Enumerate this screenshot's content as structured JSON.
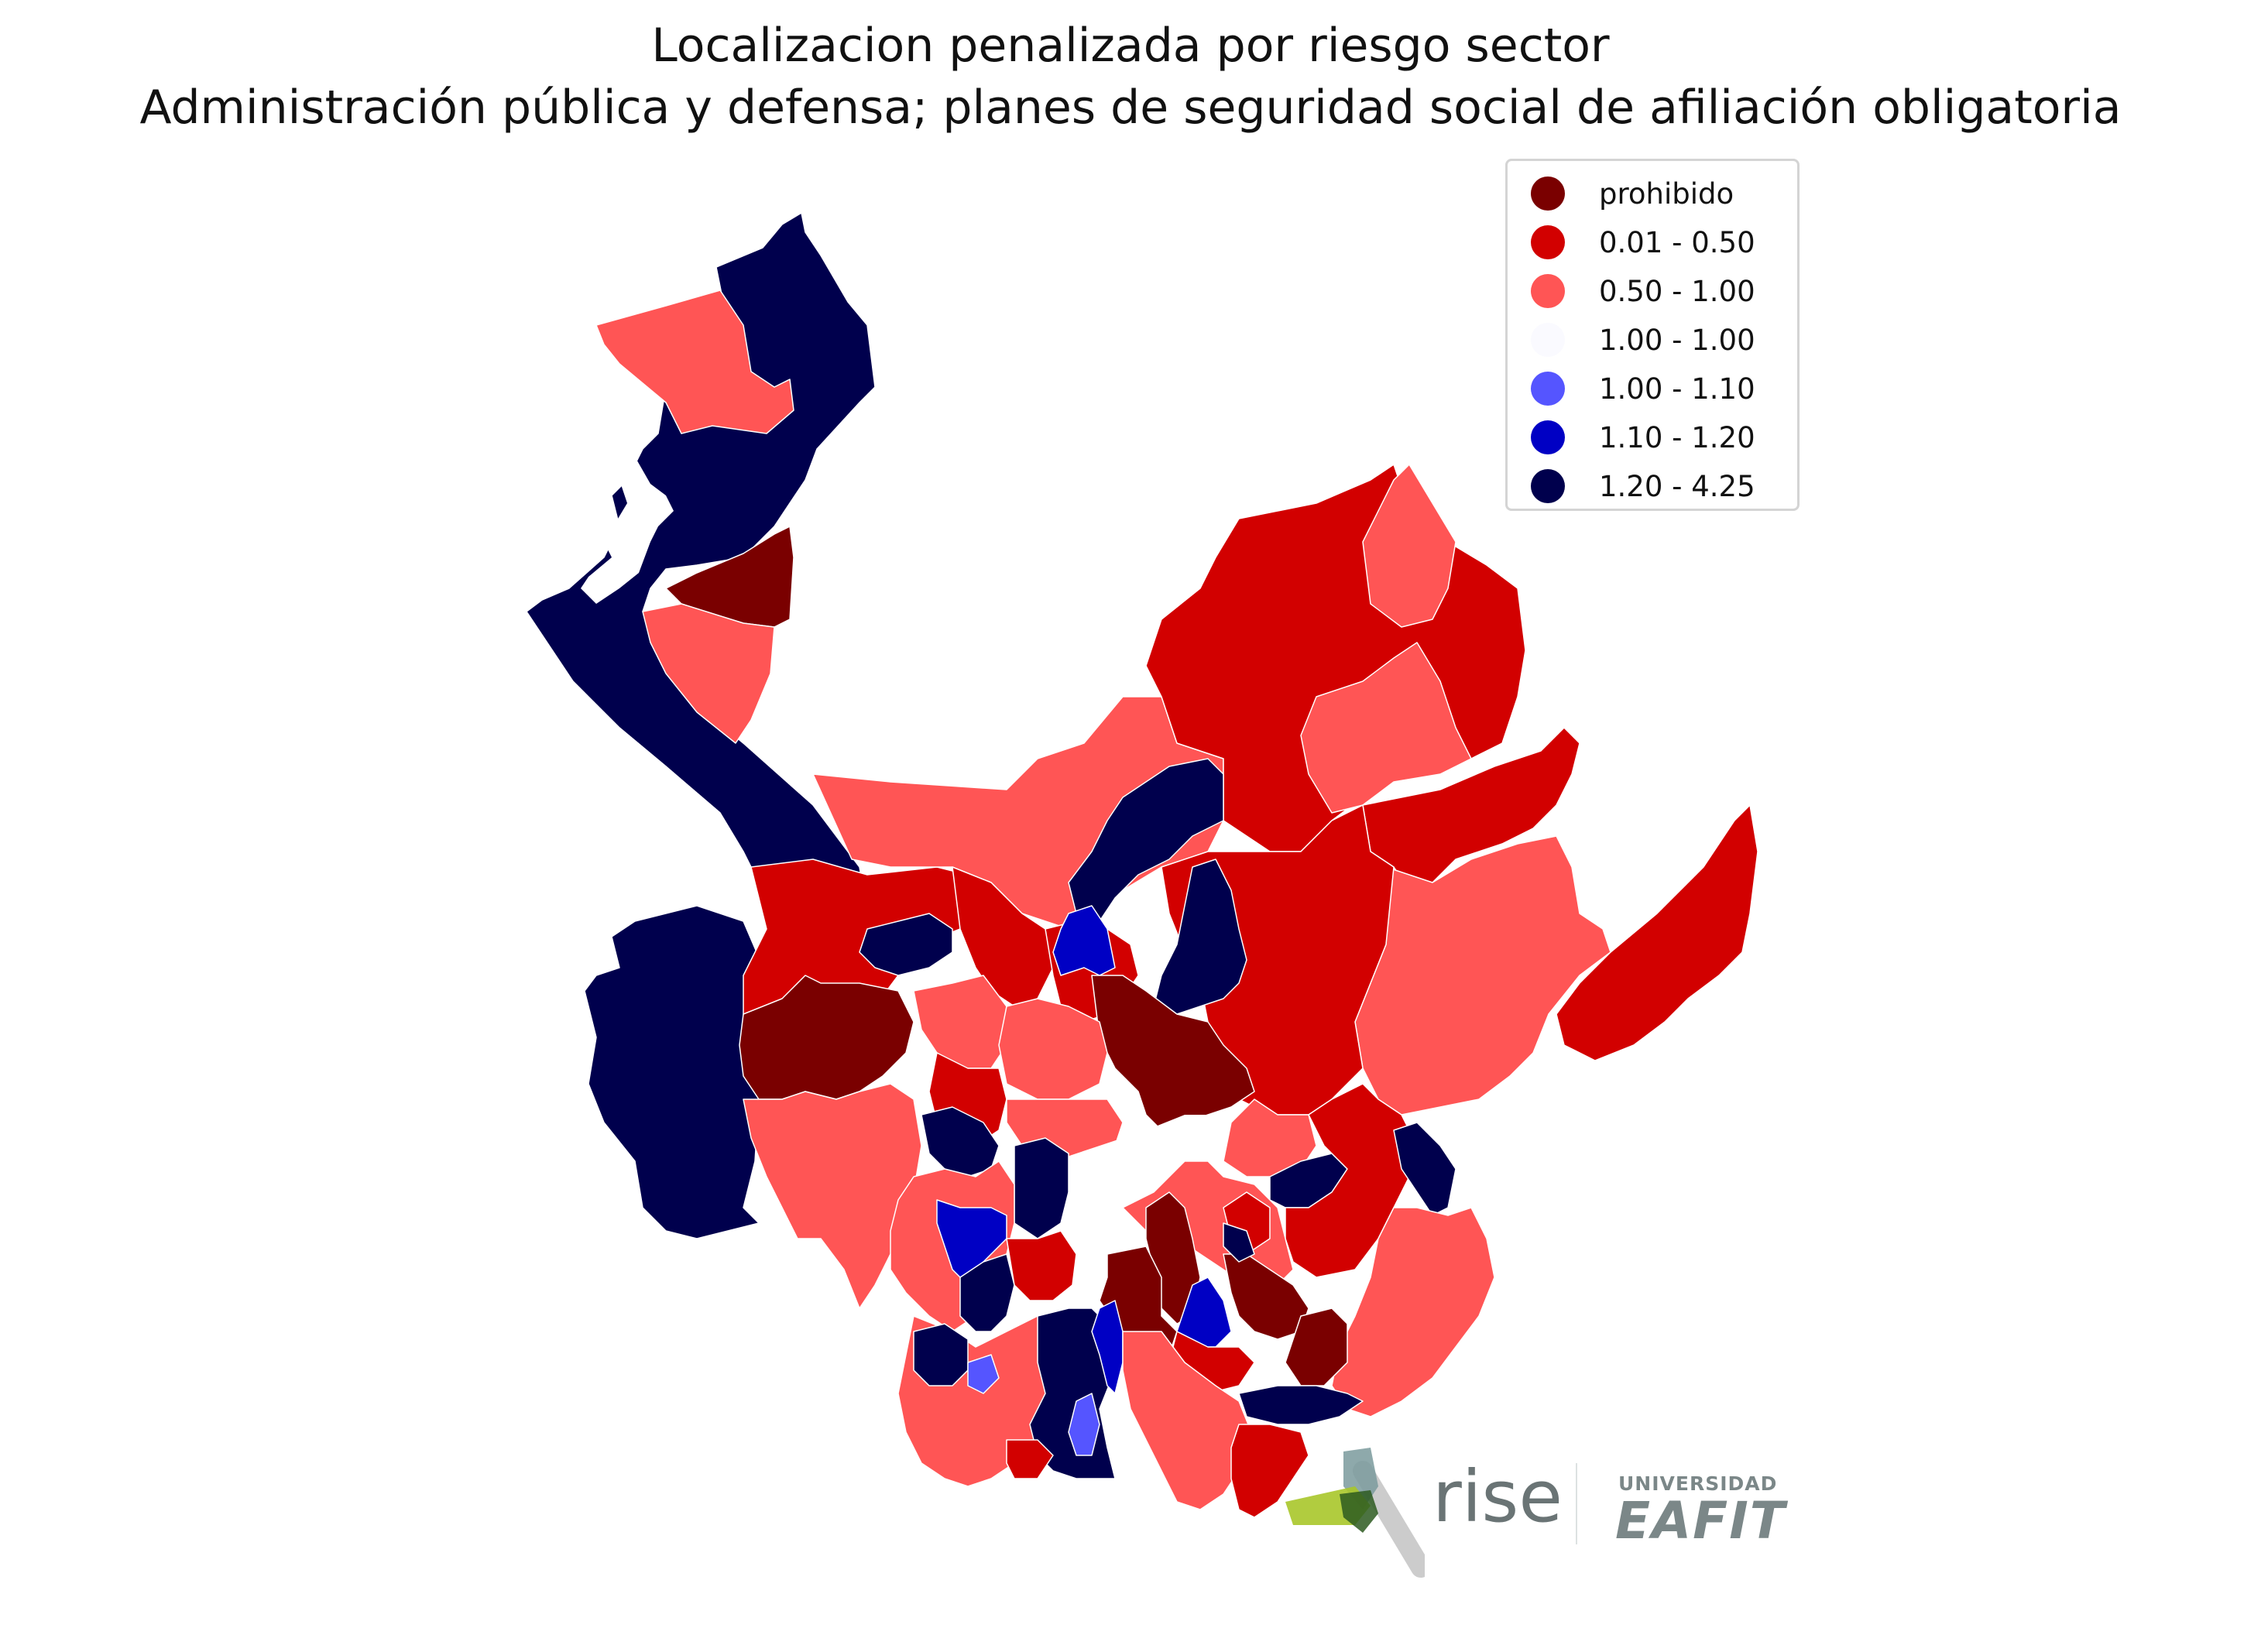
{
  "title_line1": "Localizacion penalizada por riesgo sector",
  "title_line2": "Administración pública y defensa; planes de seguridad social de afiliación obligatoria",
  "legend": [
    {
      "label": "prohibido",
      "color": "#7a0000"
    },
    {
      "label": "0.01 - 0.50",
      "color": "#d20000"
    },
    {
      "label": "0.50 - 1.00",
      "color": "#ff5555"
    },
    {
      "label": "1.00 - 1.00",
      "color": "#fafaff"
    },
    {
      "label": "1.00 - 1.10",
      "color": "#5555ff"
    },
    {
      "label": "1.10 - 1.20",
      "color": "#0000c4"
    },
    {
      "label": "1.20 - 4.25",
      "color": "#00004d"
    }
  ],
  "logos": {
    "rise": "rise",
    "university_small": "UNIVERSIDAD",
    "university_main": "EAFIT"
  }
}
